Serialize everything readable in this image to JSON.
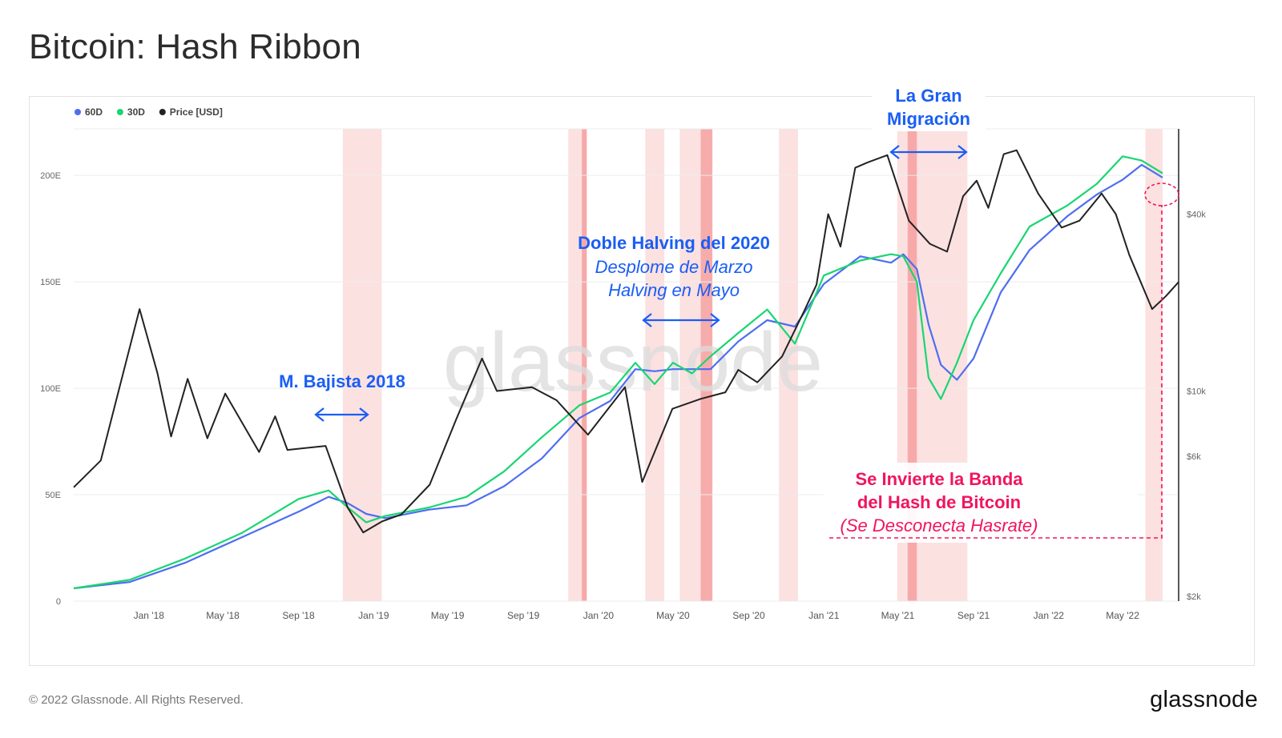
{
  "page": {
    "title": "Bitcoin: Hash Ribbon",
    "copyright": "© 2022 Glassnode. All Rights Reserved.",
    "logo_text": "glassnode",
    "watermark": "glassnode"
  },
  "legend": [
    {
      "label": "60D",
      "color": "#4d6ef0"
    },
    {
      "label": "30D",
      "color": "#18d672"
    },
    {
      "label": "Price [USD]",
      "color": "#222222"
    }
  ],
  "annotations": {
    "bear_2018": "M. Bajista 2018",
    "halving_title": "Doble Halving del 2020",
    "halving_line1": "Desplome de Marzo",
    "halving_line2": "Halving en Mayo",
    "migration_line1": "La Gran",
    "migration_line2": "Migración",
    "inversion_line1": "Se Invierte la Banda",
    "inversion_line2": "del Hash de Bitcoin",
    "inversion_line3": "(Se Desconecta Hasrate)"
  },
  "colors": {
    "annotation_blue": "#1a5ef5",
    "annotation_pink": "#f0155f",
    "band_light": "#fbd7d7",
    "band_dark": "#f6a3a3",
    "grid": "#ececec"
  },
  "chart_data": {
    "type": "line",
    "title": "Bitcoin: Hash Ribbon",
    "x_ticks": [
      "Jan '18",
      "May '18",
      "Sep '18",
      "Jan '19",
      "May '19",
      "Sep '19",
      "Jan '20",
      "May '20",
      "Sep '20",
      "Jan '21",
      "May '21",
      "Sep '21",
      "Jan '22",
      "May '22"
    ],
    "y_left_ticks": [
      "0",
      "50E",
      "100E",
      "150E",
      "200E"
    ],
    "y_left_range": [
      0,
      220
    ],
    "y_right_ticks": [
      "$2k",
      "$6k",
      "$10k",
      "$40k"
    ],
    "y_right_scale": "log",
    "y_right_range": [
      2000,
      80000
    ],
    "x_range": [
      "2017-09-01",
      "2022-07-31"
    ],
    "grid": "horizontal",
    "legend_position": "top-left",
    "capitulation_bands": [
      {
        "start": "2018-11-12",
        "end": "2019-01-14",
        "strength": "light"
      },
      {
        "start": "2019-11-13",
        "end": "2019-12-13",
        "strength": "light"
      },
      {
        "start": "2019-12-05",
        "end": "2019-12-13",
        "strength": "dark"
      },
      {
        "start": "2020-03-17",
        "end": "2020-04-17",
        "strength": "light"
      },
      {
        "start": "2020-05-12",
        "end": "2020-06-15",
        "strength": "light"
      },
      {
        "start": "2020-06-15",
        "end": "2020-07-04",
        "strength": "dark"
      },
      {
        "start": "2020-10-20",
        "end": "2020-11-20",
        "strength": "light"
      },
      {
        "start": "2021-04-30",
        "end": "2021-08-22",
        "strength": "light"
      },
      {
        "start": "2021-05-17",
        "end": "2021-06-01",
        "strength": "dark"
      },
      {
        "start": "2022-06-07",
        "end": "2022-07-05",
        "strength": "light"
      }
    ],
    "series": [
      {
        "name": "60D",
        "axis": "left",
        "x": [
          "2017-09-01",
          "2017-12-01",
          "2018-03-01",
          "2018-06-01",
          "2018-09-01",
          "2018-10-20",
          "2018-11-20",
          "2018-12-20",
          "2019-01-20",
          "2019-04-01",
          "2019-06-01",
          "2019-08-01",
          "2019-10-01",
          "2019-12-01",
          "2020-01-20",
          "2020-03-01",
          "2020-04-01",
          "2020-05-01",
          "2020-06-01",
          "2020-07-01",
          "2020-08-15",
          "2020-10-01",
          "2020-11-15",
          "2021-01-01",
          "2021-03-01",
          "2021-04-20",
          "2021-05-10",
          "2021-06-01",
          "2021-06-20",
          "2021-07-10",
          "2021-08-05",
          "2021-09-01",
          "2021-10-15",
          "2021-12-01",
          "2022-02-01",
          "2022-03-20",
          "2022-05-01",
          "2022-06-01",
          "2022-07-05"
        ],
        "values": [
          6,
          9,
          18,
          30,
          42,
          49,
          46,
          41,
          39,
          43,
          45,
          54,
          67,
          86,
          94,
          109,
          108,
          109,
          109,
          109,
          122,
          132,
          129,
          149,
          162,
          159,
          163,
          156,
          130,
          111,
          104,
          114,
          145,
          165,
          181,
          191,
          198,
          205,
          199
        ]
      },
      {
        "name": "30D",
        "axis": "left",
        "x": [
          "2017-09-01",
          "2017-12-01",
          "2018-03-01",
          "2018-06-01",
          "2018-09-01",
          "2018-10-20",
          "2018-11-20",
          "2018-12-20",
          "2019-01-20",
          "2019-04-01",
          "2019-06-01",
          "2019-08-01",
          "2019-10-01",
          "2019-12-01",
          "2020-01-20",
          "2020-03-01",
          "2020-04-01",
          "2020-05-01",
          "2020-06-01",
          "2020-07-01",
          "2020-08-15",
          "2020-10-01",
          "2020-11-15",
          "2021-01-01",
          "2021-03-01",
          "2021-04-20",
          "2021-05-10",
          "2021-06-01",
          "2021-06-20",
          "2021-07-10",
          "2021-08-05",
          "2021-09-01",
          "2021-10-15",
          "2021-12-01",
          "2022-02-01",
          "2022-03-20",
          "2022-05-01",
          "2022-06-01",
          "2022-07-05"
        ],
        "values": [
          6,
          10,
          20,
          32,
          48,
          52,
          44,
          37,
          40,
          44,
          49,
          61,
          77,
          92,
          98,
          112,
          102,
          112,
          107,
          115,
          126,
          137,
          121,
          153,
          160,
          163,
          162,
          150,
          105,
          95,
          112,
          132,
          154,
          176,
          186,
          196,
          209,
          207,
          201
        ]
      },
      {
        "name": "Price [USD]",
        "axis": "right",
        "x": [
          "2017-09-01",
          "2017-10-15",
          "2017-12-17",
          "2018-01-15",
          "2018-02-06",
          "2018-03-05",
          "2018-04-06",
          "2018-05-05",
          "2018-06-29",
          "2018-07-25",
          "2018-08-14",
          "2018-10-15",
          "2018-11-20",
          "2018-12-15",
          "2019-01-15",
          "2019-02-15",
          "2019-04-02",
          "2019-05-15",
          "2019-06-26",
          "2019-07-20",
          "2019-09-15",
          "2019-10-25",
          "2019-12-15",
          "2020-02-13",
          "2020-03-12",
          "2020-04-30",
          "2020-06-15",
          "2020-07-25",
          "2020-08-15",
          "2020-09-15",
          "2020-10-25",
          "2020-11-30",
          "2020-12-20",
          "2021-01-08",
          "2021-01-28",
          "2021-02-21",
          "2021-03-13",
          "2021-04-14",
          "2021-05-19",
          "2021-06-22",
          "2021-07-20",
          "2021-08-15",
          "2021-09-06",
          "2021-09-25",
          "2021-10-20",
          "2021-11-10",
          "2021-12-15",
          "2022-01-22",
          "2022-02-20",
          "2022-03-28",
          "2022-04-20",
          "2022-05-12",
          "2022-06-18",
          "2022-07-10",
          "2022-07-31"
        ],
        "values": [
          4700,
          5800,
          19000,
          11500,
          7000,
          11000,
          6900,
          9800,
          6200,
          8200,
          6300,
          6500,
          4000,
          3300,
          3600,
          3800,
          4800,
          8000,
          12900,
          10000,
          10300,
          9300,
          7100,
          10300,
          4900,
          8700,
          9400,
          9900,
          11800,
          10700,
          13100,
          18700,
          23000,
          40000,
          31000,
          57500,
          60000,
          63500,
          38000,
          31700,
          29800,
          46000,
          52000,
          42000,
          64000,
          66000,
          47000,
          36000,
          38000,
          47000,
          40000,
          29000,
          19000,
          21000,
          23500
        ]
      }
    ]
  }
}
